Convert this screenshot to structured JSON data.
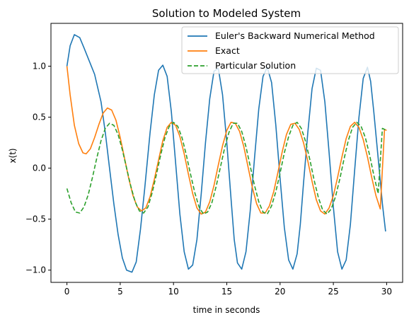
{
  "chart_data": {
    "type": "line",
    "title": "Solution to Modeled System",
    "xlabel": "time in seconds",
    "ylabel": "x(t)",
    "xlim": [
      -1.5,
      31.5
    ],
    "ylim": [
      -1.12,
      1.42
    ],
    "xticks": [
      0,
      5,
      10,
      15,
      20,
      25,
      30
    ],
    "xtick_labels": [
      "0",
      "5",
      "10",
      "15",
      "20",
      "25",
      "30"
    ],
    "yticks": [
      -1.0,
      -0.5,
      0.0,
      0.5,
      1.0
    ],
    "ytick_labels": [
      "−1.0",
      "−0.5",
      "0.0",
      "0.5",
      "1.0"
    ],
    "grid": false,
    "legend_position": "top-right",
    "series": [
      {
        "name": "Euler's Backward Numerical Method",
        "color": "#1f77b4",
        "style": "solid",
        "x": [
          0,
          0.3,
          0.7,
          1.2,
          1.6,
          2.1,
          2.6,
          3.2,
          3.6,
          4.0,
          4.4,
          4.8,
          5.2,
          5.6,
          6.1,
          6.5,
          6.9,
          7.3,
          7.8,
          8.2,
          8.6,
          9.0,
          9.4,
          9.8,
          10.2,
          10.6,
          11.0,
          11.4,
          11.8,
          12.2,
          12.6,
          13.0,
          13.4,
          13.8,
          14.2,
          14.6,
          15.0,
          15.4,
          15.7,
          16.0,
          16.4,
          16.8,
          17.2,
          17.6,
          18.0,
          18.4,
          18.8,
          19.2,
          19.6,
          20.0,
          20.4,
          20.8,
          21.2,
          21.6,
          21.9,
          22.2,
          22.6,
          23.0,
          23.4,
          23.8,
          24.2,
          24.6,
          25.0,
          25.4,
          25.8,
          26.2,
          26.6,
          27.0,
          27.4,
          27.8,
          28.2,
          28.5,
          28.8,
          29.2,
          29.6,
          29.9
        ],
        "y": [
          1.0,
          1.2,
          1.31,
          1.28,
          1.18,
          1.05,
          0.92,
          0.65,
          0.35,
          0.0,
          -0.35,
          -0.65,
          -0.88,
          -1.0,
          -1.02,
          -0.92,
          -0.6,
          -0.2,
          0.35,
          0.72,
          0.96,
          1.01,
          0.9,
          0.55,
          0.05,
          -0.45,
          -0.82,
          -0.99,
          -0.95,
          -0.7,
          -0.25,
          0.25,
          0.68,
          0.95,
          0.98,
          0.72,
          0.25,
          -0.3,
          -0.7,
          -0.93,
          -0.99,
          -0.82,
          -0.42,
          0.1,
          0.58,
          0.9,
          0.99,
          0.84,
          0.42,
          -0.1,
          -0.58,
          -0.9,
          -0.99,
          -0.84,
          -0.55,
          -0.15,
          0.35,
          0.78,
          0.98,
          0.96,
          0.65,
          0.15,
          -0.38,
          -0.82,
          -0.99,
          -0.9,
          -0.55,
          -0.02,
          0.5,
          0.88,
          0.99,
          0.85,
          0.55,
          0.1,
          -0.35,
          -0.62
        ]
      },
      {
        "name": "Exact",
        "color": "#ff7f0e",
        "style": "solid",
        "x": [
          0,
          0.3,
          0.7,
          1.1,
          1.5,
          1.8,
          2.2,
          2.6,
          3.0,
          3.4,
          3.8,
          4.2,
          4.6,
          5.0,
          5.4,
          5.8,
          6.2,
          6.6,
          7.0,
          7.4,
          7.8,
          8.2,
          8.6,
          9.0,
          9.4,
          9.8,
          10.2,
          10.6,
          11.0,
          11.4,
          11.8,
          12.2,
          12.6,
          13.0,
          13.4,
          13.8,
          14.2,
          14.6,
          15.0,
          15.4,
          15.8,
          16.2,
          16.6,
          17.0,
          17.4,
          17.8,
          18.2,
          18.6,
          19.0,
          19.4,
          19.8,
          20.2,
          20.6,
          21.0,
          21.4,
          21.8,
          22.2,
          22.6,
          23.0,
          23.4,
          23.8,
          24.2,
          24.6,
          25.0,
          25.4,
          25.8,
          26.2,
          26.6,
          27.0,
          27.4,
          27.8,
          28.2,
          28.6,
          29.0,
          29.4,
          29.8,
          30.0
        ],
        "y": [
          1.0,
          0.72,
          0.42,
          0.24,
          0.15,
          0.14,
          0.19,
          0.3,
          0.43,
          0.54,
          0.59,
          0.57,
          0.47,
          0.3,
          0.1,
          -0.1,
          -0.27,
          -0.38,
          -0.42,
          -0.39,
          -0.28,
          -0.11,
          0.08,
          0.27,
          0.4,
          0.45,
          0.42,
          0.31,
          0.14,
          -0.06,
          -0.25,
          -0.39,
          -0.45,
          -0.43,
          -0.33,
          -0.17,
          0.03,
          0.22,
          0.37,
          0.45,
          0.44,
          0.36,
          0.21,
          0.01,
          -0.19,
          -0.35,
          -0.44,
          -0.44,
          -0.37,
          -0.23,
          -0.04,
          0.16,
          0.33,
          0.43,
          0.44,
          0.38,
          0.25,
          0.07,
          -0.13,
          -0.31,
          -0.42,
          -0.45,
          -0.39,
          -0.27,
          -0.09,
          0.11,
          0.29,
          0.41,
          0.45,
          0.4,
          0.28,
          0.11,
          -0.09,
          -0.27,
          -0.4,
          0.38,
          0.37
        ]
      },
      {
        "name": "Particular Solution",
        "color": "#2ca02c",
        "style": "dashed",
        "x": [
          0,
          0.4,
          0.8,
          1.2,
          1.6,
          2.0,
          2.4,
          2.8,
          3.2,
          3.6,
          4.0,
          4.4,
          4.8,
          5.2,
          5.6,
          6.0,
          6.4,
          6.8,
          7.2,
          7.6,
          8.0,
          8.4,
          8.8,
          9.2,
          9.6,
          10.0,
          10.4,
          10.8,
          11.2,
          11.6,
          12.0,
          12.4,
          12.8,
          13.2,
          13.6,
          14.0,
          14.4,
          14.8,
          15.2,
          15.6,
          16.0,
          16.4,
          16.8,
          17.2,
          17.6,
          18.0,
          18.4,
          18.8,
          19.2,
          19.6,
          20.0,
          20.4,
          20.8,
          21.2,
          21.6,
          22.0,
          22.4,
          22.8,
          23.2,
          23.6,
          24.0,
          24.4,
          24.8,
          25.2,
          25.6,
          26.0,
          26.4,
          26.8,
          27.2,
          27.6,
          28.0,
          28.4,
          28.8,
          29.2,
          29.6,
          30.0
        ],
        "y": [
          -0.2,
          -0.34,
          -0.43,
          -0.44,
          -0.38,
          -0.26,
          -0.09,
          0.1,
          0.27,
          0.39,
          0.44,
          0.42,
          0.33,
          0.18,
          0.0,
          -0.18,
          -0.33,
          -0.42,
          -0.44,
          -0.38,
          -0.24,
          -0.06,
          0.13,
          0.3,
          0.41,
          0.45,
          0.41,
          0.3,
          0.13,
          -0.06,
          -0.24,
          -0.38,
          -0.45,
          -0.43,
          -0.34,
          -0.18,
          0.01,
          0.2,
          0.35,
          0.44,
          0.44,
          0.36,
          0.21,
          0.02,
          -0.17,
          -0.33,
          -0.43,
          -0.45,
          -0.37,
          -0.23,
          -0.05,
          0.15,
          0.31,
          0.42,
          0.45,
          0.39,
          0.26,
          0.08,
          -0.12,
          -0.29,
          -0.41,
          -0.45,
          -0.4,
          -0.28,
          -0.11,
          0.09,
          0.27,
          0.4,
          0.45,
          0.41,
          0.3,
          0.13,
          -0.07,
          -0.25,
          0.39,
          0.37
        ]
      }
    ]
  }
}
